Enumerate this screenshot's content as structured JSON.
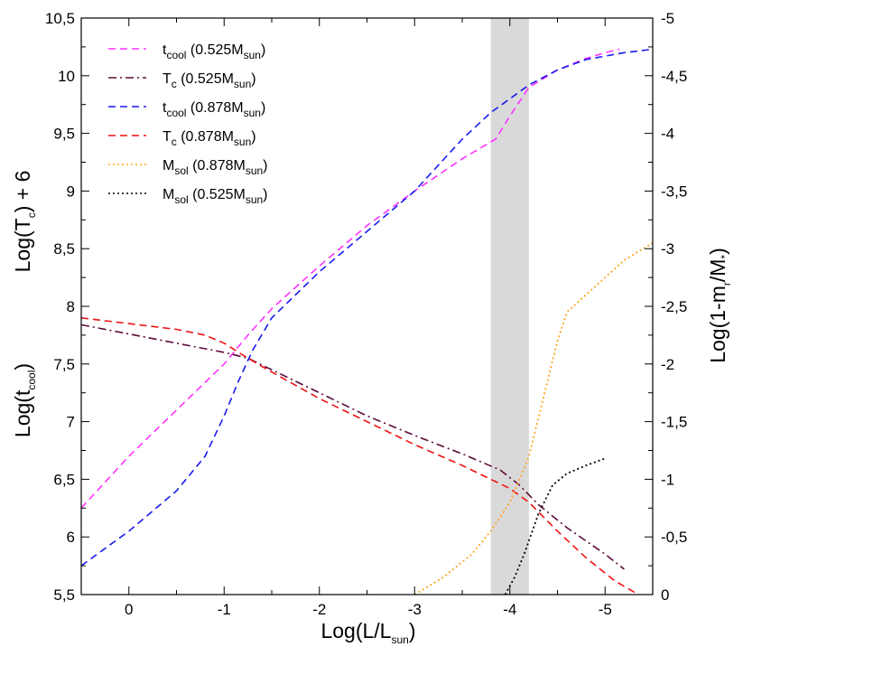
{
  "chart_data": {
    "type": "line",
    "x_axis": {
      "label_main": "Log(L/L",
      "label_sub": "sun",
      "label_close": ")",
      "range": [
        0.5,
        -5.5
      ],
      "ticks": [
        0,
        -1,
        -2,
        -3,
        -4,
        -5
      ],
      "tick_labels": [
        "0",
        "-1",
        "-2",
        "-3",
        "-4",
        "-5"
      ]
    },
    "y_left": {
      "label_top": {
        "main": "Log(T",
        "sub": "c",
        "close": ") + 6"
      },
      "label_bottom": {
        "main": "Log(t",
        "sub": "cool",
        "close": ")"
      },
      "range": [
        5.5,
        10.5
      ],
      "ticks": [
        5.5,
        6,
        6.5,
        7,
        7.5,
        8,
        8.5,
        9,
        9.5,
        10,
        10.5
      ],
      "tick_labels": [
        "5,5",
        "6",
        "6,5",
        "7",
        "7,5",
        "8",
        "8,5",
        "9",
        "9,5",
        "10",
        "10,5"
      ]
    },
    "y_right": {
      "label": {
        "main": "Log(1-m",
        "sub": "r",
        "mid": "/M",
        "sub2": "*",
        "close": ")"
      },
      "range": [
        0,
        -5
      ],
      "ticks": [
        0,
        -0.5,
        -1,
        -1.5,
        -2,
        -2.5,
        -3,
        -3.5,
        -4,
        -4.5,
        -5
      ],
      "tick_labels": [
        "0",
        "-0,5",
        "-1",
        "-1,5",
        "-2",
        "-2,5",
        "-3",
        "-3,5",
        "-4",
        "-4,5",
        "-5"
      ]
    },
    "shaded_band": {
      "x_from": -3.8,
      "x_to": -4.2,
      "color": "#d9d9d9"
    },
    "series": [
      {
        "name": "t_cool (0.525M_sun)",
        "legend": {
          "main": "t",
          "sub": "cool",
          "rest": " (0.525M",
          "sub2": "sun",
          "close": ")"
        },
        "color": "#ff33ff",
        "dash": "8,5",
        "axis": "left",
        "x": [
          0.5,
          0,
          -0.5,
          -1,
          -1.25,
          -1.5,
          -2,
          -2.5,
          -3,
          -3.5,
          -3.85,
          -4,
          -4.2,
          -4.5,
          -4.8,
          -5.0,
          -5.15
        ],
        "y": [
          6.25,
          6.7,
          7.1,
          7.5,
          7.75,
          7.98,
          8.35,
          8.7,
          9.0,
          9.28,
          9.45,
          9.65,
          9.9,
          10.05,
          10.15,
          10.2,
          10.23
        ]
      },
      {
        "name": "T_c (0.525M_sun)",
        "legend": {
          "main": "T",
          "sub": "c",
          "rest": " (0.525M",
          "sub2": "sun",
          "close": ")"
        },
        "color": "#5c0a3a",
        "dash": "9,4,2,4",
        "axis": "left",
        "x": [
          0.5,
          0,
          -0.5,
          -1,
          -1.25,
          -1.5,
          -2,
          -2.5,
          -3,
          -3.5,
          -3.9,
          -4.1,
          -4.3,
          -4.6,
          -5.0,
          -5.2
        ],
        "y": [
          7.84,
          7.76,
          7.68,
          7.6,
          7.55,
          7.45,
          7.25,
          7.05,
          6.88,
          6.72,
          6.58,
          6.45,
          6.28,
          6.08,
          5.85,
          5.72
        ]
      },
      {
        "name": "t_cool (0.878M_sun)",
        "legend": {
          "main": "t",
          "sub": "cool",
          "rest": " (0.878M",
          "sub2": "sun",
          "close": ")"
        },
        "color": "#1a1aee",
        "dash": "8,5",
        "axis": "left",
        "x": [
          0.5,
          0,
          -0.5,
          -0.8,
          -1,
          -1.15,
          -1.3,
          -1.5,
          -2,
          -2.5,
          -3,
          -3.5,
          -3.8,
          -4,
          -4.2,
          -4.5,
          -4.8,
          -5.2,
          -5.5
        ],
        "y": [
          5.75,
          6.05,
          6.4,
          6.7,
          7.05,
          7.35,
          7.62,
          7.9,
          8.3,
          8.65,
          9.0,
          9.45,
          9.68,
          9.8,
          9.92,
          10.05,
          10.14,
          10.2,
          10.23
        ]
      },
      {
        "name": "T_c (0.878M_sun)",
        "legend": {
          "main": "T",
          "sub": "c",
          "rest": " (0.878M",
          "sub2": "sun",
          "close": ")"
        },
        "color": "#ee1111",
        "dash": "8,5",
        "axis": "left",
        "x": [
          0.5,
          0,
          -0.5,
          -0.8,
          -1,
          -1.25,
          -1.5,
          -2,
          -2.5,
          -3,
          -3.5,
          -3.8,
          -4,
          -4.2,
          -4.5,
          -4.8,
          -5.1,
          -5.35
        ],
        "y": [
          7.9,
          7.85,
          7.8,
          7.75,
          7.68,
          7.55,
          7.43,
          7.2,
          7.0,
          6.8,
          6.62,
          6.5,
          6.42,
          6.3,
          6.05,
          5.82,
          5.62,
          5.5
        ]
      },
      {
        "name": "M_sol (0.878M_sun)",
        "legend": {
          "main": "M",
          "sub": "sol",
          "rest": " (0.878M",
          "sub2": "sun",
          "close": ")"
        },
        "color": "#ffa520",
        "dash": "2,3",
        "axis": "right",
        "x": [
          -3.0,
          -3.3,
          -3.6,
          -3.8,
          -4.0,
          -4.2,
          -4.35,
          -4.5,
          -4.6,
          -4.8,
          -5.0,
          -5.2,
          -5.5
        ],
        "y": [
          0,
          -0.15,
          -0.35,
          -0.55,
          -0.8,
          -1.2,
          -1.7,
          -2.2,
          -2.45,
          -2.6,
          -2.75,
          -2.9,
          -3.05
        ]
      },
      {
        "name": "M_sol (0.525M_sun)",
        "legend": {
          "main": "M",
          "sub": "sol",
          "rest": " (0.525M",
          "sub2": "sun",
          "close": ")"
        },
        "color": "#000000",
        "dash": "2,3",
        "axis": "right",
        "x": [
          -3.95,
          -4.05,
          -4.15,
          -4.3,
          -4.45,
          -4.6,
          -4.8,
          -5.0
        ],
        "y": [
          0,
          -0.15,
          -0.35,
          -0.7,
          -0.95,
          -1.05,
          -1.12,
          -1.18
        ]
      }
    ]
  }
}
